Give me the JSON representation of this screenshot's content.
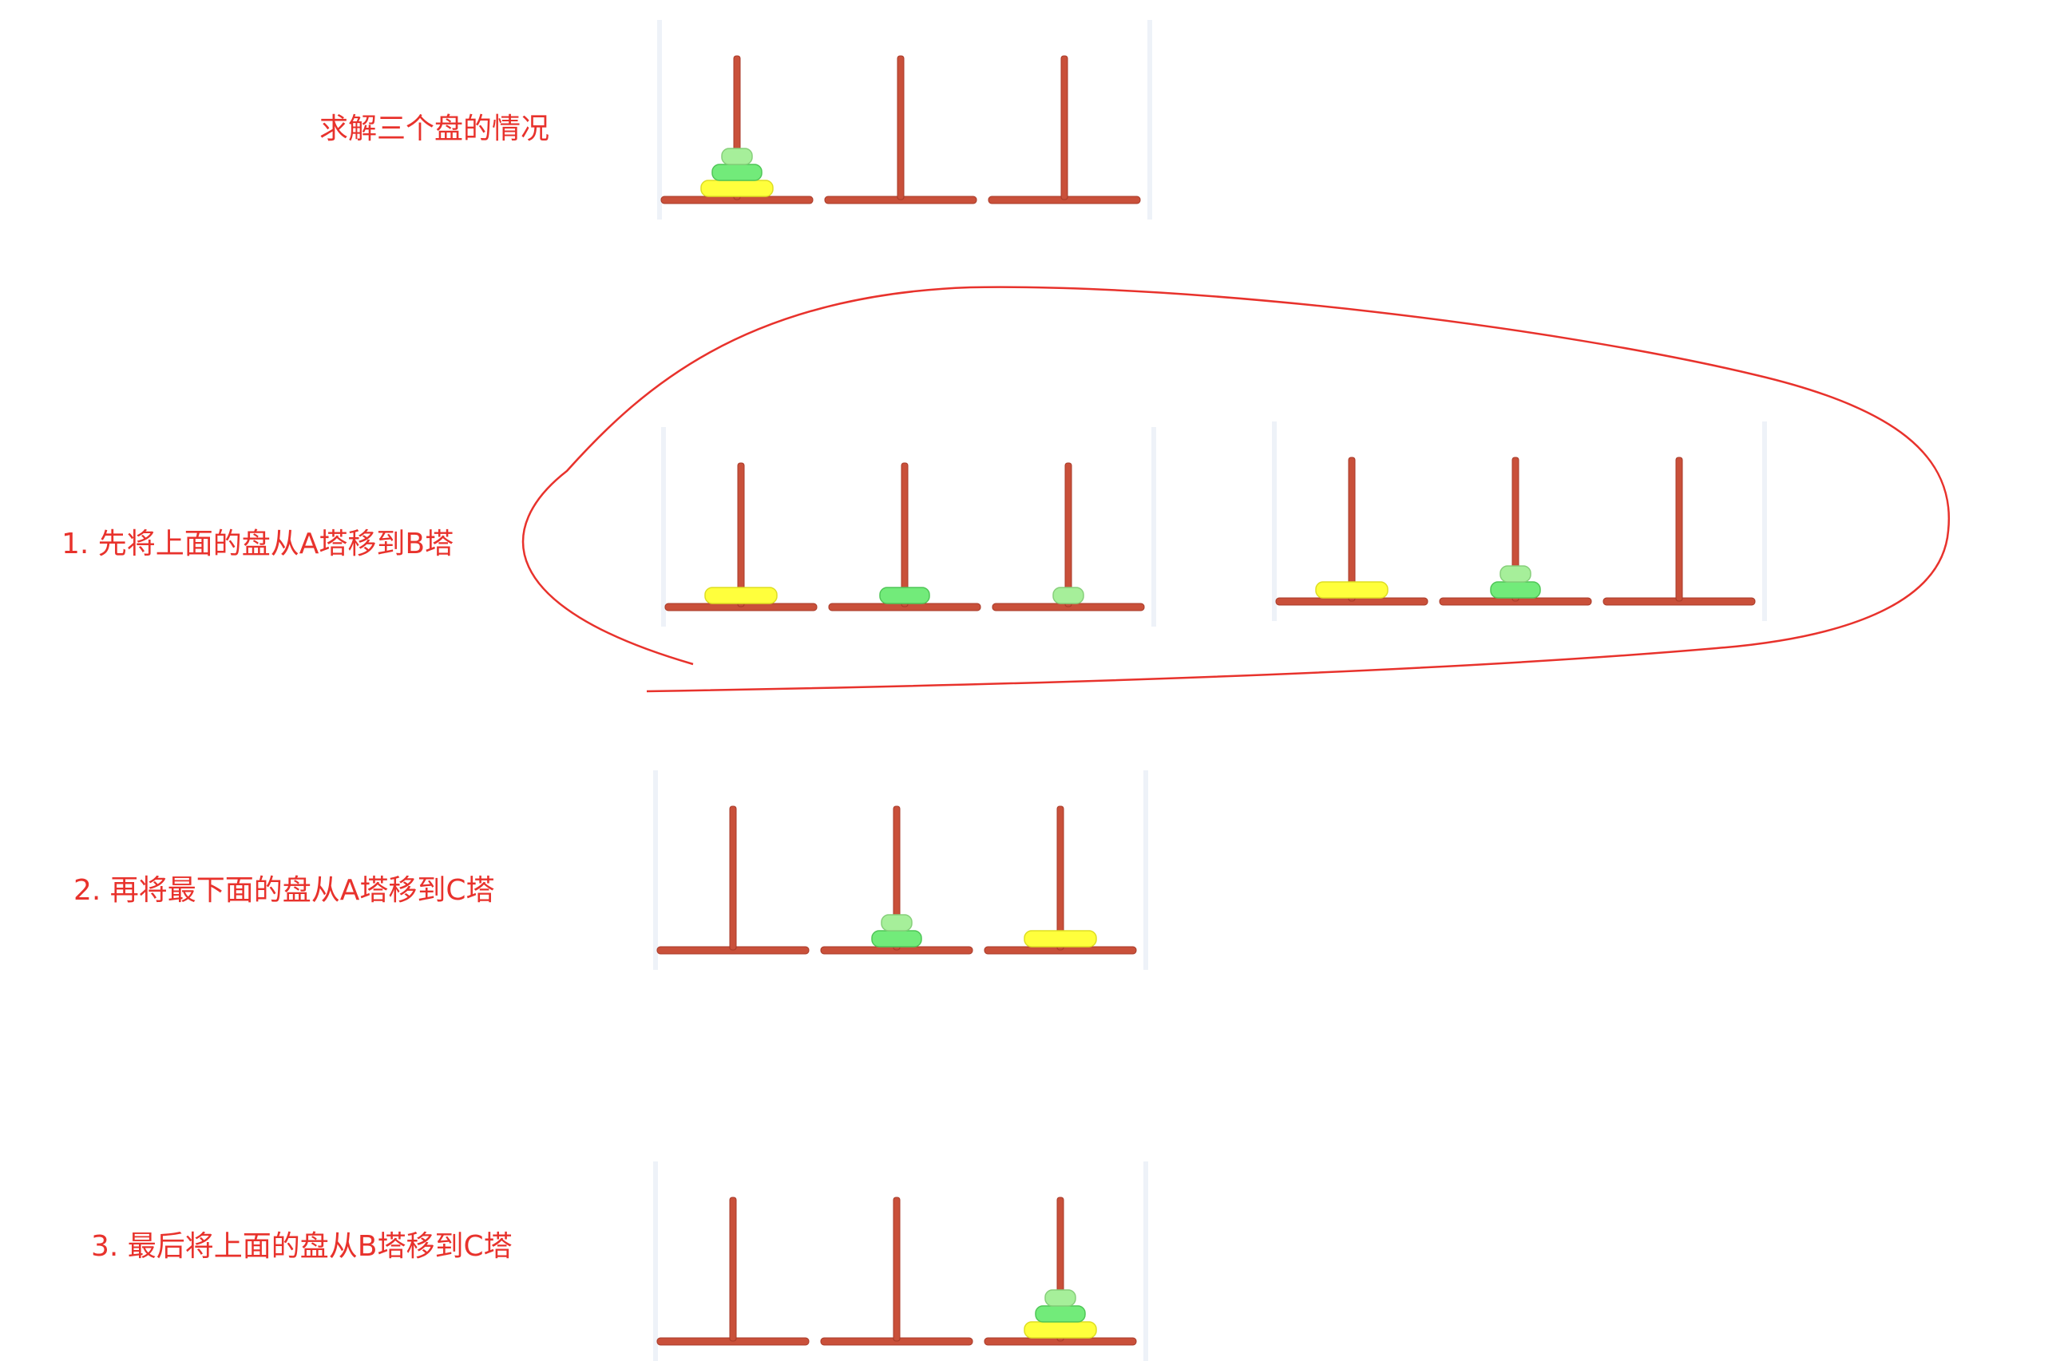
{
  "labels": {
    "initial": "求解三个盘的情况",
    "step1": "1.  先将上面的盘从A塔移到B塔",
    "step2": "2. 再将最下面的盘从A塔移到C塔",
    "step3": "3. 最后将上面的盘从B塔移到C塔"
  },
  "colors": {
    "label_text": "#e8322c",
    "rod": "#c9503a",
    "rod_edge": "#a83a28",
    "panel_shade": "#eef2f8",
    "annotation_ellipse": "#e8322c"
  },
  "disk_styles": {
    "small": {
      "fill": "#a6ef9a",
      "stroke": "#86cf7a"
    },
    "medium": {
      "fill": "#72eb7a",
      "stroke": "#4fc657"
    },
    "large": {
      "fill": "#ffff3c",
      "stroke": "#dddd22"
    }
  },
  "panels": [
    {
      "id": "panel-initial",
      "pegs": [
        [
          "large",
          "medium",
          "small"
        ],
        [],
        []
      ]
    },
    {
      "id": "panel-step1a",
      "pegs": [
        [
          "large"
        ],
        [
          "medium"
        ],
        [
          "small"
        ]
      ]
    },
    {
      "id": "panel-step1b",
      "pegs": [
        [
          "large"
        ],
        [
          "medium",
          "small"
        ],
        []
      ]
    },
    {
      "id": "panel-step2",
      "pegs": [
        [],
        [
          "medium",
          "small"
        ],
        [
          "large"
        ]
      ]
    },
    {
      "id": "panel-step3",
      "pegs": [
        [],
        [],
        [
          "large",
          "medium",
          "small"
        ]
      ]
    }
  ]
}
